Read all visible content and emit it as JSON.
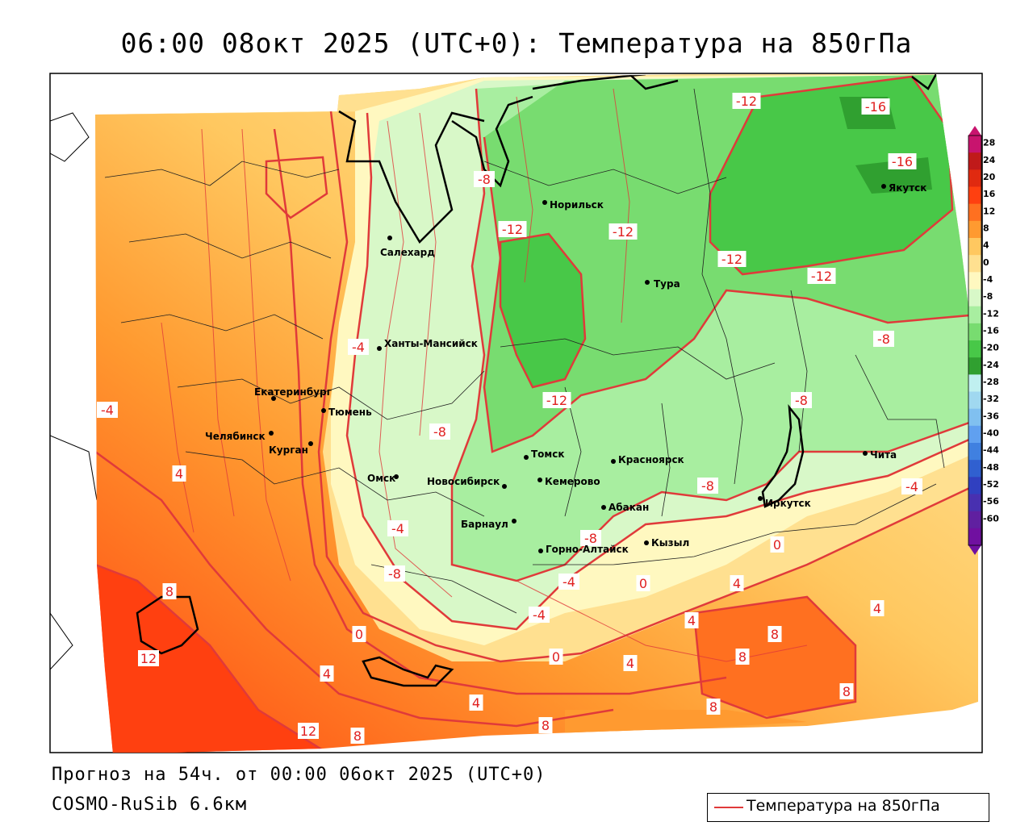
{
  "title": "06:00 08окт 2025 (UTC+0): Температура на 850гПа",
  "footer": {
    "forecast": "Прогноз на 54ч. от 00:00 06окт 2025 (UTC+0)",
    "model": "COSMO-RuSib 6.6км"
  },
  "legend": {
    "label": "Температура на 850гПа",
    "line_color": "#e03a3a"
  },
  "colorbar": {
    "ticks": [
      28,
      24,
      20,
      16,
      12,
      8,
      4,
      0,
      -4,
      -8,
      -12,
      -16,
      -20,
      -24,
      -28,
      -32,
      -36,
      -40,
      -44,
      -48,
      -52,
      -56,
      -60
    ],
    "colors": [
      "#c8146e",
      "#c01a1a",
      "#e02a10",
      "#ff4010",
      "#ff7020",
      "#ff9a30",
      "#ffc860",
      "#ffe090",
      "#fff8c0",
      "#d8f8c8",
      "#a8eea0",
      "#78dc70",
      "#48c848",
      "#30a030",
      "#c0f0f0",
      "#a0d8f0",
      "#80c0f0",
      "#60a0f0",
      "#4080e0",
      "#3060d0",
      "#3040c0",
      "#4830b0",
      "#6020a0",
      "#7010a0"
    ]
  },
  "cities": [
    {
      "name": "Норильск",
      "lon": 88.2,
      "lat": 69.35
    },
    {
      "name": "Салехард",
      "lon": 66.6,
      "lat": 66.53
    },
    {
      "name": "Тура",
      "lon": 100.2,
      "lat": 64.28
    },
    {
      "name": "Якутск",
      "lon": 129.7,
      "lat": 62.03
    },
    {
      "name": "Ханты-Мансийск",
      "lon": 69.0,
      "lat": 61.0
    },
    {
      "name": "Екатеринбург",
      "lon": 60.6,
      "lat": 56.84
    },
    {
      "name": "Тюмень",
      "lon": 65.5,
      "lat": 57.15
    },
    {
      "name": "Челябинск",
      "lon": 61.4,
      "lat": 55.16
    },
    {
      "name": "Курган",
      "lon": 65.3,
      "lat": 55.45
    },
    {
      "name": "Омск",
      "lon": 73.4,
      "lat": 54.98
    },
    {
      "name": "Новосибирск",
      "lon": 82.9,
      "lat": 55.03
    },
    {
      "name": "Томск",
      "lon": 84.95,
      "lat": 56.49
    },
    {
      "name": "Кемерово",
      "lon": 86.1,
      "lat": 55.35
    },
    {
      "name": "Красноярск",
      "lon": 92.9,
      "lat": 56.0
    },
    {
      "name": "Барнаул",
      "lon": 83.8,
      "lat": 53.35
    },
    {
      "name": "Абакан",
      "lon": 91.4,
      "lat": 53.72
    },
    {
      "name": "Горно-Алтайск",
      "lon": 85.96,
      "lat": 51.96
    },
    {
      "name": "Кызыл",
      "lon": 94.45,
      "lat": 51.72
    },
    {
      "name": "Иркутск",
      "lon": 104.3,
      "lat": 52.29
    },
    {
      "name": "Чита",
      "lon": 113.5,
      "lat": 52.03
    }
  ],
  "isotherm_labels": [
    {
      "text": "-12"
    },
    {
      "text": "-16"
    },
    {
      "text": "-16"
    },
    {
      "text": "-8"
    },
    {
      "text": "-12"
    },
    {
      "text": "-12"
    },
    {
      "text": "-12"
    },
    {
      "text": "-12"
    },
    {
      "text": "-8"
    },
    {
      "text": "-4"
    },
    {
      "text": "-12"
    },
    {
      "text": "-8"
    },
    {
      "text": "-8"
    },
    {
      "text": "-8"
    },
    {
      "text": "-4"
    },
    {
      "text": "-4"
    },
    {
      "text": "-8"
    },
    {
      "text": "-8"
    },
    {
      "text": "-4"
    },
    {
      "text": "0"
    },
    {
      "text": "0"
    },
    {
      "text": "-4"
    },
    {
      "text": "4"
    },
    {
      "text": "4"
    },
    {
      "text": "4"
    },
    {
      "text": "0"
    },
    {
      "text": "0"
    },
    {
      "text": "8"
    },
    {
      "text": "8"
    },
    {
      "text": "4"
    },
    {
      "text": "8"
    },
    {
      "text": "4"
    },
    {
      "text": "12"
    },
    {
      "text": "8"
    },
    {
      "text": "8"
    },
    {
      "text": "8"
    },
    {
      "text": "12"
    },
    {
      "text": "4"
    },
    {
      "text": "4"
    },
    {
      "text": "8"
    },
    {
      "text": "-4"
    }
  ]
}
